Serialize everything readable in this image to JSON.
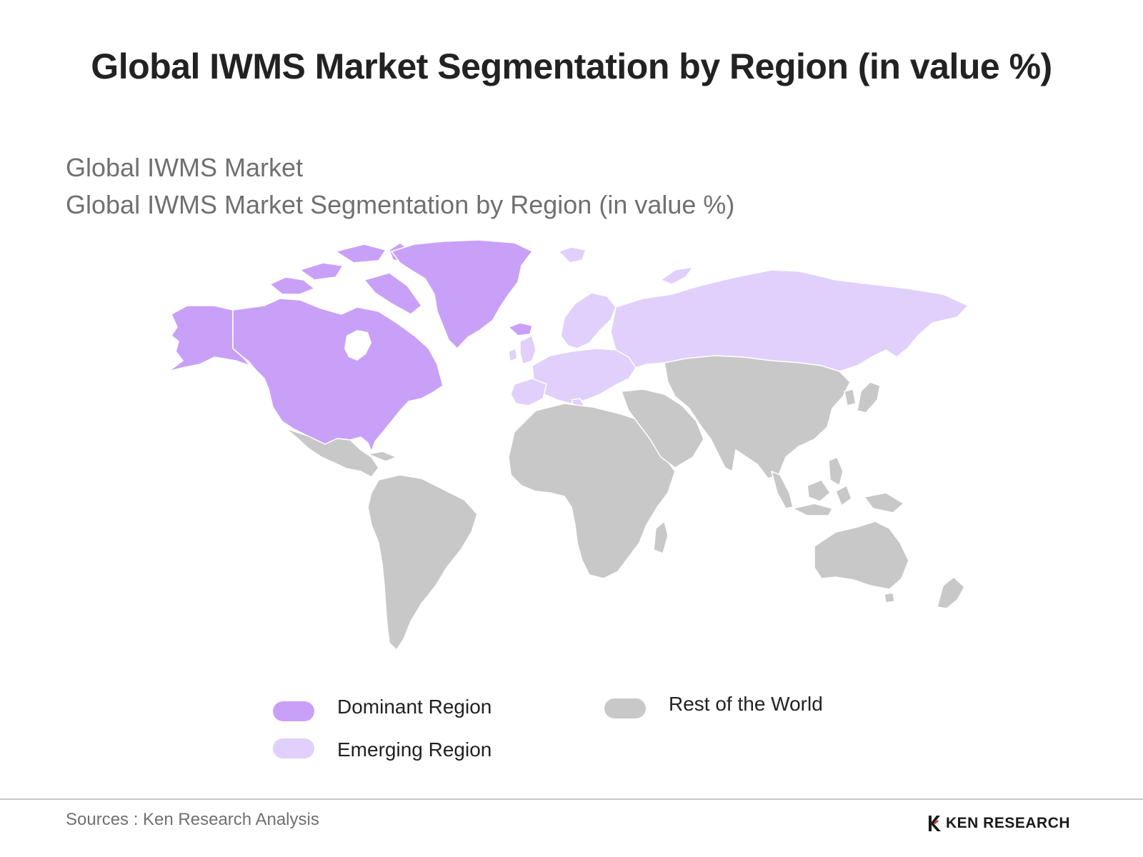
{
  "title": "Global IWMS Market Segmentation by Region (in value %)",
  "subtitle_line1": "Global IWMS Market",
  "subtitle_line2": "Global IWMS Market Segmentation by Region (in value %)",
  "colors": {
    "dominant": "#c9a0f8",
    "emerging": "#e0d0fb",
    "rest": "#c8c8c8",
    "border": "#ffffff"
  },
  "regions": {
    "dominant": [
      "North America",
      "Greenland"
    ],
    "emerging": [
      "Europe",
      "Russia"
    ],
    "rest": [
      "Latin America",
      "Africa",
      "Middle East",
      "Asia",
      "Australia and Oceania"
    ]
  },
  "legend": {
    "dominant": "Dominant Region",
    "emerging": "Emerging Region",
    "rest": "Rest of the World"
  },
  "sources": "Sources : Ken Research Analysis",
  "logo_text": "KEN RESEARCH"
}
